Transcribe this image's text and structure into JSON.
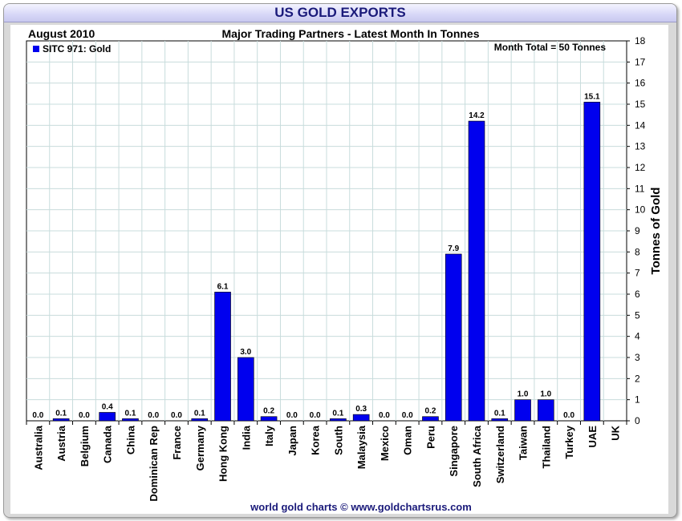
{
  "header": {
    "title": "US GOLD EXPORTS",
    "period": "August 2010",
    "subtitle": "Major Trading Partners - Latest Month In Tonnes",
    "legend": "SITC 971: Gold",
    "month_total": "Month Total = 50 Tonnes",
    "footer": "world gold charts © www.goldchartsrus.com"
  },
  "colors": {
    "bar": "#0000ee",
    "title": "#1a1a7a",
    "grid": "#c8dcdc",
    "footer": "#1a1a7a"
  },
  "chart_data": {
    "type": "bar",
    "title": "US GOLD EXPORTS",
    "subtitle": "Major Trading Partners - Latest Month In Tonnes",
    "xlabel": "",
    "ylabel": "Tonnes of Gold",
    "ylim": [
      0,
      18
    ],
    "yticks": [
      0,
      1,
      2,
      3,
      4,
      5,
      6,
      7,
      8,
      9,
      10,
      11,
      12,
      13,
      14,
      15,
      16,
      17,
      18
    ],
    "grid": true,
    "legend_position": "top-left",
    "series": [
      {
        "name": "SITC 971: Gold",
        "values": [
          0.0,
          0.1,
          0.0,
          0.4,
          0.1,
          0.0,
          0.0,
          0.1,
          6.1,
          3.0,
          0.2,
          0.0,
          0.0,
          0.1,
          0.3,
          0.0,
          0.0,
          0.2,
          7.9,
          14.2,
          0.1,
          1.0,
          1.0,
          0.0,
          15.1,
          null
        ]
      }
    ],
    "categories": [
      "Australia",
      "Austria",
      "Belgium",
      "Canada",
      "China",
      "Dominican Rep",
      "France",
      "Germany",
      "Hong Kong",
      "India",
      "Italy",
      "Japan",
      "Korea",
      "South",
      "Malaysia",
      "Mexico",
      "Oman",
      "Peru",
      "Singapore",
      "South Africa",
      "Switzerland",
      "Taiwan",
      "Thailand",
      "Turkey",
      "UAE",
      "UK"
    ],
    "value_labels": [
      "0.0",
      "0.1",
      "0.0",
      "0.4",
      "0.1",
      "0.0",
      "0.0",
      "0.1",
      "6.1",
      "3.0",
      "0.2",
      "0.0",
      "0.0",
      "0.1",
      "0.3",
      "0.0",
      "0.0",
      "0.2",
      "7.9",
      "14.2",
      "0.1",
      "1.0",
      "1.0",
      "0.0",
      "15.1",
      ""
    ]
  }
}
